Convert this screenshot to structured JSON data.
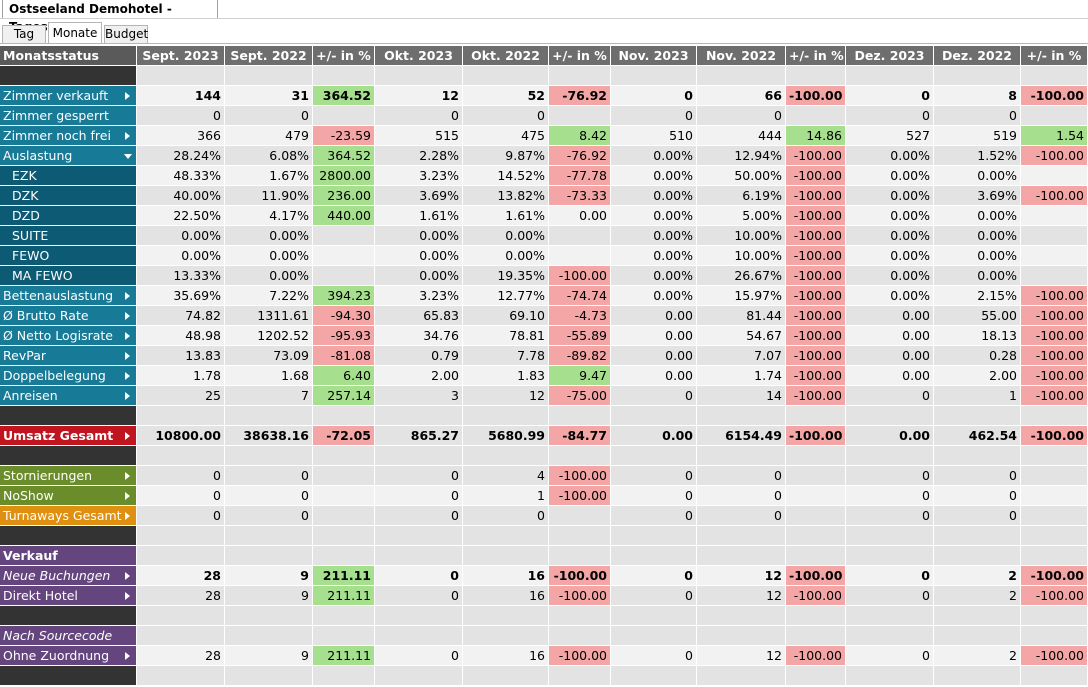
{
  "window": {
    "title": "Ostseeland Demohotel - Tagesstatus"
  },
  "tabs": [
    "Tag",
    "Monate",
    "Budget"
  ],
  "active_tab": "Monate",
  "colors": {
    "header": "#6e6e6e",
    "teal": "#177a96",
    "teal_dark": "#0c5a74",
    "red": "#c0151f",
    "green": "#6a8c2a",
    "orange": "#e09010",
    "purple": "#64457e",
    "positive": "#a6e08f",
    "negative": "#f4a6a6"
  },
  "header": [
    "Monatsstatus",
    "Sept. 2023",
    "Sept. 2022",
    "+/- in %",
    "Okt. 2023",
    "Okt. 2022",
    "+/- in %",
    "Nov. 2023",
    "Nov. 2022",
    "+/- in %",
    "Dez. 2023",
    "Dez. 2022",
    "+/- in %"
  ],
  "rows": [
    {
      "label": "",
      "type": "empty",
      "values": [
        "",
        "",
        "",
        "",
        "",
        "",
        "",
        "",
        "",
        "",
        "",
        ""
      ]
    },
    {
      "label": "Zimmer verkauft",
      "type": "teal",
      "arrow": "right",
      "bold": true,
      "values": [
        "144",
        "31",
        "364.52",
        "12",
        "52",
        "-76.92",
        "0",
        "66",
        "-100.00",
        "0",
        "8",
        "-100.00"
      ],
      "states": [
        "",
        "",
        "pos",
        "",
        "",
        "neg",
        "",
        "",
        "neg",
        "",
        "",
        "neg"
      ]
    },
    {
      "label": "Zimmer gesperrt",
      "type": "teal",
      "values": [
        "0",
        "0",
        "",
        "0",
        "0",
        "",
        "0",
        "0",
        "",
        "0",
        "0",
        ""
      ],
      "states": [
        "",
        "",
        "",
        "",
        "",
        "",
        "",
        "",
        "",
        "",
        "",
        ""
      ]
    },
    {
      "label": "Zimmer noch frei",
      "type": "teal",
      "arrow": "right",
      "values": [
        "366",
        "479",
        "-23.59",
        "515",
        "475",
        "8.42",
        "510",
        "444",
        "14.86",
        "527",
        "519",
        "1.54"
      ],
      "states": [
        "",
        "",
        "neg",
        "",
        "",
        "pos",
        "",
        "",
        "pos",
        "",
        "",
        "pos"
      ]
    },
    {
      "label": "Auslastung",
      "type": "teal",
      "arrow": "down",
      "values": [
        "28.24%",
        "6.08%",
        "364.52",
        "2.28%",
        "9.87%",
        "-76.92",
        "0.00%",
        "12.94%",
        "-100.00",
        "0.00%",
        "1.52%",
        "-100.00"
      ],
      "states": [
        "",
        "",
        "pos",
        "",
        "",
        "neg",
        "",
        "",
        "neg",
        "",
        "",
        "neg"
      ]
    },
    {
      "label": "EZK",
      "type": "teal-dark",
      "indent": true,
      "values": [
        "48.33%",
        "1.67%",
        "2800.00",
        "3.23%",
        "14.52%",
        "-77.78",
        "0.00%",
        "50.00%",
        "-100.00",
        "0.00%",
        "0.00%",
        ""
      ],
      "states": [
        "",
        "",
        "pos",
        "",
        "",
        "neg",
        "",
        "",
        "neg",
        "",
        "",
        ""
      ]
    },
    {
      "label": "DZK",
      "type": "teal-dark",
      "indent": true,
      "values": [
        "40.00%",
        "11.90%",
        "236.00",
        "3.69%",
        "13.82%",
        "-73.33",
        "0.00%",
        "6.19%",
        "-100.00",
        "0.00%",
        "3.69%",
        "-100.00"
      ],
      "states": [
        "",
        "",
        "pos",
        "",
        "",
        "neg",
        "",
        "",
        "neg",
        "",
        "",
        "neg"
      ]
    },
    {
      "label": "DZD",
      "type": "teal-dark",
      "indent": true,
      "values": [
        "22.50%",
        "4.17%",
        "440.00",
        "1.61%",
        "1.61%",
        "0.00",
        "0.00%",
        "5.00%",
        "-100.00",
        "0.00%",
        "0.00%",
        ""
      ],
      "states": [
        "",
        "",
        "pos",
        "",
        "",
        "",
        "",
        "",
        "neg",
        "",
        "",
        ""
      ]
    },
    {
      "label": "SUITE",
      "type": "teal-dark",
      "indent": true,
      "values": [
        "0.00%",
        "0.00%",
        "",
        "0.00%",
        "0.00%",
        "",
        "0.00%",
        "10.00%",
        "-100.00",
        "0.00%",
        "0.00%",
        ""
      ],
      "states": [
        "",
        "",
        "",
        "",
        "",
        "",
        "",
        "",
        "neg",
        "",
        "",
        ""
      ]
    },
    {
      "label": "FEWO",
      "type": "teal-dark",
      "indent": true,
      "values": [
        "0.00%",
        "0.00%",
        "",
        "0.00%",
        "0.00%",
        "",
        "0.00%",
        "10.00%",
        "-100.00",
        "0.00%",
        "0.00%",
        ""
      ],
      "states": [
        "",
        "",
        "",
        "",
        "",
        "",
        "",
        "",
        "neg",
        "",
        "",
        ""
      ]
    },
    {
      "label": "MA FEWO",
      "type": "teal-dark",
      "indent": true,
      "values": [
        "13.33%",
        "0.00%",
        "",
        "0.00%",
        "19.35%",
        "-100.00",
        "0.00%",
        "26.67%",
        "-100.00",
        "0.00%",
        "0.00%",
        ""
      ],
      "states": [
        "",
        "",
        "",
        "",
        "",
        "neg",
        "",
        "",
        "neg",
        "",
        "",
        ""
      ]
    },
    {
      "label": "Bettenauslastung",
      "type": "teal",
      "arrow": "right",
      "values": [
        "35.69%",
        "7.22%",
        "394.23",
        "3.23%",
        "12.77%",
        "-74.74",
        "0.00%",
        "15.97%",
        "-100.00",
        "0.00%",
        "2.15%",
        "-100.00"
      ],
      "states": [
        "",
        "",
        "pos",
        "",
        "",
        "neg",
        "",
        "",
        "neg",
        "",
        "",
        "neg"
      ]
    },
    {
      "label": "Ø Brutto Rate",
      "type": "teal",
      "arrow": "right",
      "values": [
        "74.82",
        "1311.61",
        "-94.30",
        "65.83",
        "69.10",
        "-4.73",
        "0.00",
        "81.44",
        "-100.00",
        "0.00",
        "55.00",
        "-100.00"
      ],
      "states": [
        "",
        "",
        "neg",
        "",
        "",
        "neg",
        "",
        "",
        "neg",
        "",
        "",
        "neg"
      ]
    },
    {
      "label": "Ø Netto Logisrate",
      "type": "teal",
      "arrow": "right",
      "values": [
        "48.98",
        "1202.52",
        "-95.93",
        "34.76",
        "78.81",
        "-55.89",
        "0.00",
        "54.67",
        "-100.00",
        "0.00",
        "18.13",
        "-100.00"
      ],
      "states": [
        "",
        "",
        "neg",
        "",
        "",
        "neg",
        "",
        "",
        "neg",
        "",
        "",
        "neg"
      ]
    },
    {
      "label": "RevPar",
      "type": "teal",
      "arrow": "right",
      "values": [
        "13.83",
        "73.09",
        "-81.08",
        "0.79",
        "7.78",
        "-89.82",
        "0.00",
        "7.07",
        "-100.00",
        "0.00",
        "0.28",
        "-100.00"
      ],
      "states": [
        "",
        "",
        "neg",
        "",
        "",
        "neg",
        "",
        "",
        "neg",
        "",
        "",
        "neg"
      ]
    },
    {
      "label": "Doppelbelegung",
      "type": "teal",
      "arrow": "right",
      "values": [
        "1.78",
        "1.68",
        "6.40",
        "2.00",
        "1.83",
        "9.47",
        "0.00",
        "1.74",
        "-100.00",
        "0.00",
        "2.00",
        "-100.00"
      ],
      "states": [
        "",
        "",
        "pos",
        "",
        "",
        "pos",
        "",
        "",
        "neg",
        "",
        "",
        "neg"
      ]
    },
    {
      "label": "Anreisen",
      "type": "teal",
      "arrow": "right",
      "values": [
        "25",
        "7",
        "257.14",
        "3",
        "12",
        "-75.00",
        "0",
        "14",
        "-100.00",
        "0",
        "1",
        "-100.00"
      ],
      "states": [
        "",
        "",
        "pos",
        "",
        "",
        "neg",
        "",
        "",
        "neg",
        "",
        "",
        "neg"
      ]
    },
    {
      "label": "",
      "type": "empty",
      "values": [
        "",
        "",
        "",
        "",
        "",
        "",
        "",
        "",
        "",
        "",
        "",
        ""
      ]
    },
    {
      "label": "Umsatz Gesamt",
      "type": "red",
      "arrow": "right",
      "bold": true,
      "values": [
        "10800.00",
        "38638.16",
        "-72.05",
        "865.27",
        "5680.99",
        "-84.77",
        "0.00",
        "6154.49",
        "-100.00",
        "0.00",
        "462.54",
        "-100.00"
      ],
      "states": [
        "",
        "",
        "neg",
        "",
        "",
        "neg",
        "",
        "",
        "neg",
        "",
        "",
        "neg"
      ]
    },
    {
      "label": "",
      "type": "empty",
      "values": [
        "",
        "",
        "",
        "",
        "",
        "",
        "",
        "",
        "",
        "",
        "",
        ""
      ]
    },
    {
      "label": "Stornierungen",
      "type": "green",
      "arrow": "right",
      "values": [
        "0",
        "0",
        "",
        "0",
        "4",
        "-100.00",
        "0",
        "0",
        "",
        "0",
        "0",
        ""
      ],
      "states": [
        "",
        "",
        "",
        "",
        "",
        "neg",
        "",
        "",
        "",
        "",
        "",
        ""
      ]
    },
    {
      "label": "NoShow",
      "type": "green",
      "arrow": "right",
      "values": [
        "0",
        "0",
        "",
        "0",
        "1",
        "-100.00",
        "0",
        "0",
        "",
        "0",
        "0",
        ""
      ],
      "states": [
        "",
        "",
        "",
        "",
        "",
        "neg",
        "",
        "",
        "",
        "",
        "",
        ""
      ]
    },
    {
      "label": "Turnaways Gesamt",
      "type": "orange",
      "arrow": "right",
      "values": [
        "0",
        "0",
        "",
        "0",
        "0",
        "",
        "0",
        "0",
        "",
        "0",
        "0",
        ""
      ],
      "states": [
        "",
        "",
        "",
        "",
        "",
        "",
        "",
        "",
        "",
        "",
        "",
        ""
      ]
    },
    {
      "label": "",
      "type": "empty",
      "values": [
        "",
        "",
        "",
        "",
        "",
        "",
        "",
        "",
        "",
        "",
        "",
        ""
      ]
    },
    {
      "label": "Verkauf",
      "type": "purple-bold",
      "values": [
        "",
        "",
        "",
        "",
        "",
        "",
        "",
        "",
        "",
        "",
        "",
        ""
      ],
      "states": [
        "",
        "",
        "",
        "",
        "",
        "",
        "",
        "",
        "",
        "",
        "",
        ""
      ]
    },
    {
      "label": "Neue Buchungen",
      "type": "purple",
      "italic": true,
      "arrow": "right",
      "bold": true,
      "values": [
        "28",
        "9",
        "211.11",
        "0",
        "16",
        "-100.00",
        "0",
        "12",
        "-100.00",
        "0",
        "2",
        "-100.00"
      ],
      "states": [
        "",
        "",
        "pos",
        "",
        "",
        "neg",
        "",
        "",
        "neg",
        "",
        "",
        "neg"
      ]
    },
    {
      "label": "Direkt Hotel",
      "type": "purple",
      "arrow": "right",
      "values": [
        "28",
        "9",
        "211.11",
        "0",
        "16",
        "-100.00",
        "0",
        "12",
        "-100.00",
        "0",
        "2",
        "-100.00"
      ],
      "states": [
        "",
        "",
        "pos",
        "",
        "",
        "neg",
        "",
        "",
        "neg",
        "",
        "",
        "neg"
      ]
    },
    {
      "label": "",
      "type": "empty",
      "values": [
        "",
        "",
        "",
        "",
        "",
        "",
        "",
        "",
        "",
        "",
        "",
        ""
      ]
    },
    {
      "label": "Nach Sourcecode",
      "type": "purple",
      "italic": true,
      "values": [
        "",
        "",
        "",
        "",
        "",
        "",
        "",
        "",
        "",
        "",
        "",
        ""
      ],
      "states": [
        "",
        "",
        "",
        "",
        "",
        "",
        "",
        "",
        "",
        "",
        "",
        ""
      ]
    },
    {
      "label": "Ohne Zuordnung",
      "type": "purple",
      "arrow": "right",
      "values": [
        "28",
        "9",
        "211.11",
        "0",
        "16",
        "-100.00",
        "0",
        "12",
        "-100.00",
        "0",
        "2",
        "-100.00"
      ],
      "states": [
        "",
        "",
        "pos",
        "",
        "",
        "neg",
        "",
        "",
        "neg",
        "",
        "",
        "neg"
      ]
    },
    {
      "label": "",
      "type": "empty",
      "values": [
        "",
        "",
        "",
        "",
        "",
        "",
        "",
        "",
        "",
        "",
        "",
        ""
      ]
    }
  ]
}
